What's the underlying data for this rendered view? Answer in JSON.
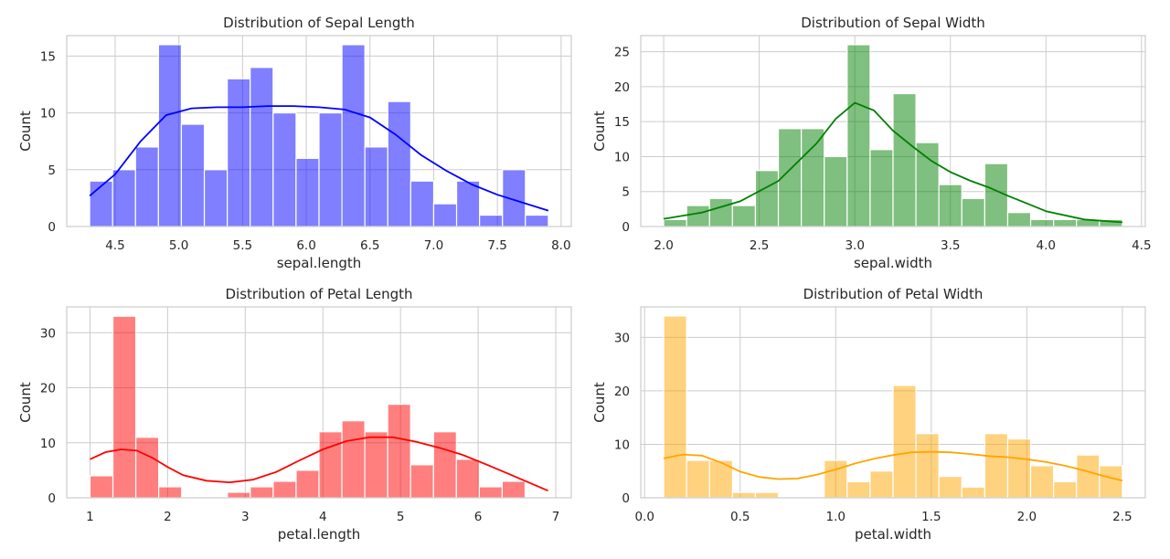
{
  "chart_data": [
    {
      "type": "histogram",
      "title": "Distribution of Sepal Length",
      "xlabel": "sepal.length",
      "ylabel": "Count",
      "color": "#0000ff",
      "bar_alpha": 0.5,
      "kde": true,
      "bin_start": 4.3,
      "bin_width": 0.18,
      "counts": [
        4,
        5,
        7,
        16,
        9,
        5,
        13,
        14,
        10,
        6,
        10,
        16,
        7,
        11,
        4,
        2,
        4,
        1,
        5,
        1
      ],
      "kde_curve": [
        [
          4.3,
          2.7
        ],
        [
          4.5,
          4.6
        ],
        [
          4.7,
          7.5
        ],
        [
          4.9,
          9.8
        ],
        [
          5.1,
          10.4
        ],
        [
          5.3,
          10.5
        ],
        [
          5.5,
          10.5
        ],
        [
          5.7,
          10.6
        ],
        [
          5.9,
          10.6
        ],
        [
          6.1,
          10.5
        ],
        [
          6.3,
          10.3
        ],
        [
          6.5,
          9.6
        ],
        [
          6.7,
          8.1
        ],
        [
          6.9,
          6.3
        ],
        [
          7.1,
          4.9
        ],
        [
          7.3,
          3.7
        ],
        [
          7.5,
          2.8
        ],
        [
          7.7,
          2.1
        ],
        [
          7.9,
          1.4
        ]
      ],
      "xlim": [
        4.12,
        8.08
      ],
      "ylim": [
        0,
        16.8
      ],
      "xticks": [
        4.5,
        5.0,
        5.5,
        6.0,
        6.5,
        7.0,
        7.5,
        8.0
      ],
      "xtick_labels": [
        "4.5",
        "5.0",
        "5.5",
        "6.0",
        "6.5",
        "7.0",
        "7.5",
        "8.0"
      ],
      "yticks": [
        0,
        5,
        10,
        15
      ],
      "ytick_labels": [
        "0",
        "5",
        "10",
        "15"
      ],
      "grid": true
    },
    {
      "type": "histogram",
      "title": "Distribution of Sepal Width",
      "xlabel": "sepal.width",
      "ylabel": "Count",
      "color": "#008000",
      "bar_alpha": 0.5,
      "kde": true,
      "bin_start": 2.0,
      "bin_width": 0.12,
      "counts": [
        1,
        3,
        4,
        3,
        8,
        14,
        14,
        10,
        26,
        11,
        19,
        12,
        6,
        4,
        9,
        2,
        1,
        1,
        1,
        1
      ],
      "kde_curve": [
        [
          2.0,
          1.1
        ],
        [
          2.2,
          2.0
        ],
        [
          2.4,
          3.6
        ],
        [
          2.6,
          6.5
        ],
        [
          2.8,
          11.9
        ],
        [
          2.9,
          15.4
        ],
        [
          3.0,
          17.7
        ],
        [
          3.1,
          16.6
        ],
        [
          3.2,
          13.7
        ],
        [
          3.3,
          11.5
        ],
        [
          3.4,
          9.4
        ],
        [
          3.5,
          7.8
        ],
        [
          3.6,
          6.6
        ],
        [
          3.7,
          5.6
        ],
        [
          3.8,
          4.4
        ],
        [
          3.9,
          3.3
        ],
        [
          4.0,
          2.2
        ],
        [
          4.2,
          1.0
        ],
        [
          4.4,
          0.6
        ]
      ],
      "xlim": [
        1.88,
        4.52
      ],
      "ylim": [
        0,
        27.3
      ],
      "xticks": [
        2.0,
        2.5,
        3.0,
        3.5,
        4.0,
        4.5
      ],
      "xtick_labels": [
        "2.0",
        "2.5",
        "3.0",
        "3.5",
        "4.0",
        "4.5"
      ],
      "yticks": [
        0,
        5,
        10,
        15,
        20,
        25
      ],
      "ytick_labels": [
        "0",
        "5",
        "10",
        "15",
        "20",
        "25"
      ],
      "grid": true
    },
    {
      "type": "histogram",
      "title": "Distribution of Petal Length",
      "xlabel": "petal.length",
      "ylabel": "Count",
      "color": "#ff0000",
      "bar_alpha": 0.5,
      "kde": true,
      "bin_start": 1.0,
      "bin_width": 0.295,
      "counts": [
        4,
        33,
        11,
        2,
        0,
        0,
        1,
        2,
        3,
        5,
        12,
        14,
        12,
        17,
        6,
        12,
        7,
        2,
        3,
        0
      ],
      "kde_curve": [
        [
          1.0,
          7.0
        ],
        [
          1.2,
          8.3
        ],
        [
          1.4,
          8.8
        ],
        [
          1.6,
          8.6
        ],
        [
          1.8,
          7.3
        ],
        [
          2.0,
          5.6
        ],
        [
          2.2,
          4.1
        ],
        [
          2.5,
          3.1
        ],
        [
          2.8,
          2.8
        ],
        [
          3.1,
          3.3
        ],
        [
          3.4,
          4.7
        ],
        [
          3.7,
          6.8
        ],
        [
          4.0,
          8.8
        ],
        [
          4.3,
          10.3
        ],
        [
          4.6,
          11.0
        ],
        [
          4.9,
          11.0
        ],
        [
          5.2,
          10.2
        ],
        [
          5.5,
          9.1
        ],
        [
          5.8,
          7.8
        ],
        [
          6.1,
          6.1
        ],
        [
          6.4,
          4.3
        ],
        [
          6.6,
          3.1
        ],
        [
          6.9,
          1.3
        ]
      ],
      "xlim": [
        0.7,
        7.2
      ],
      "ylim": [
        0,
        34.7
      ],
      "xticks": [
        1,
        2,
        3,
        4,
        5,
        6,
        7
      ],
      "xtick_labels": [
        "1",
        "2",
        "3",
        "4",
        "5",
        "6",
        "7"
      ],
      "yticks": [
        0,
        10,
        20,
        30
      ],
      "ytick_labels": [
        "0",
        "10",
        "20",
        "30"
      ],
      "grid": true
    },
    {
      "type": "histogram",
      "title": "Distribution of Petal Width",
      "xlabel": "petal.width",
      "ylabel": "Count",
      "color": "#ffa500",
      "bar_alpha": 0.5,
      "kde": true,
      "bin_start": 0.1,
      "bin_width": 0.12,
      "counts": [
        34,
        7,
        7,
        1,
        1,
        0,
        0,
        7,
        3,
        5,
        21,
        12,
        4,
        2,
        12,
        11,
        6,
        3,
        8,
        6
      ],
      "kde_curve": [
        [
          0.1,
          7.4
        ],
        [
          0.2,
          8.1
        ],
        [
          0.3,
          7.9
        ],
        [
          0.4,
          6.6
        ],
        [
          0.5,
          4.9
        ],
        [
          0.6,
          3.9
        ],
        [
          0.7,
          3.5
        ],
        [
          0.8,
          3.6
        ],
        [
          0.9,
          4.3
        ],
        [
          1.0,
          5.3
        ],
        [
          1.1,
          6.4
        ],
        [
          1.2,
          7.3
        ],
        [
          1.3,
          8.0
        ],
        [
          1.4,
          8.5
        ],
        [
          1.5,
          8.6
        ],
        [
          1.6,
          8.5
        ],
        [
          1.7,
          8.2
        ],
        [
          1.8,
          7.8
        ],
        [
          1.9,
          7.6
        ],
        [
          2.0,
          7.2
        ],
        [
          2.1,
          6.7
        ],
        [
          2.2,
          6.0
        ],
        [
          2.3,
          5.1
        ],
        [
          2.4,
          4.1
        ],
        [
          2.5,
          3.2
        ]
      ],
      "xlim": [
        -0.02,
        2.62
      ],
      "ylim": [
        0,
        35.7
      ],
      "xticks": [
        0.0,
        0.5,
        1.0,
        1.5,
        2.0,
        2.5
      ],
      "xtick_labels": [
        "0.0",
        "0.5",
        "1.0",
        "1.5",
        "2.0",
        "2.5"
      ],
      "yticks": [
        0,
        10,
        20,
        30
      ],
      "ytick_labels": [
        "0",
        "10",
        "20",
        "30"
      ],
      "grid": true
    }
  ]
}
